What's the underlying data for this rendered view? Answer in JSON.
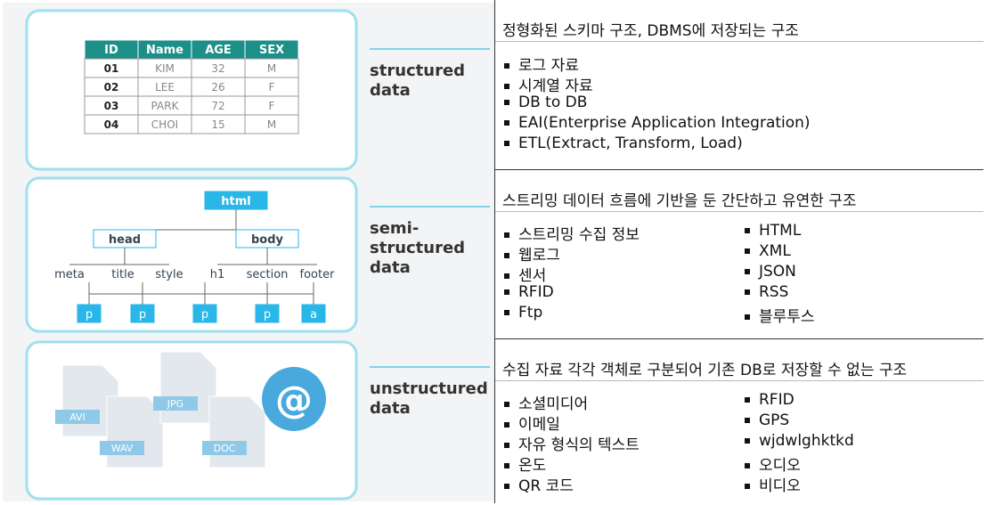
{
  "rows": [
    {
      "diagram": {
        "table": {
          "header": [
            "ID",
            "Name",
            "AGE",
            "SEX"
          ],
          "rows": [
            [
              "01",
              "KIM",
              "32",
              "M"
            ],
            [
              "02",
              "LEE",
              "26",
              "F"
            ],
            [
              "03",
              "PARK",
              "72",
              "F"
            ],
            [
              "04",
              "CHOI",
              "15",
              "M"
            ]
          ]
        }
      },
      "label_lines": [
        "structured",
        "data"
      ],
      "description": "정형화된 스키마 구조, DBMS에 저장되는 구조",
      "items": [
        [
          "로그 자료",
          "시계열 자료",
          "DB to DB",
          "EAI(Enterprise Application Integration)",
          "ETL(Extract, Transform, Load)"
        ]
      ]
    },
    {
      "diagram": {
        "nodes": [
          "html",
          "head",
          "body",
          "meta",
          "title",
          "style",
          "h1",
          "section",
          "footer",
          "p",
          "p",
          "p",
          "p",
          "a"
        ]
      },
      "label_lines": [
        "semi-",
        "structured",
        "data"
      ],
      "description": "스트리밍 데이터 흐름에 기반을 둔 간단하고 유연한 구조",
      "items": [
        [
          "스트리밍 수집 정보",
          "웹로그",
          "센서",
          "RFID",
          "Ftp"
        ],
        [
          "HTML",
          "XML",
          "JSON",
          "RSS",
          "블루투스"
        ]
      ]
    },
    {
      "diagram": {
        "files": [
          "AVI",
          "WAV",
          "JPG",
          "DOC"
        ],
        "symbol": "@"
      },
      "label_lines": [
        "unstructured",
        "data"
      ],
      "description": "수집 자료 각각 객체로 구분되어 기존 DB로 저장할 수 없는 구조",
      "items": [
        [
          "소셜미디어",
          "이메일",
          "자유 형식의 텍스트",
          "온도",
          "QR 코드"
        ],
        [
          "RFID",
          "GPS",
          "wjdwlghktkd",
          "오디오",
          "비디오"
        ]
      ]
    }
  ]
}
